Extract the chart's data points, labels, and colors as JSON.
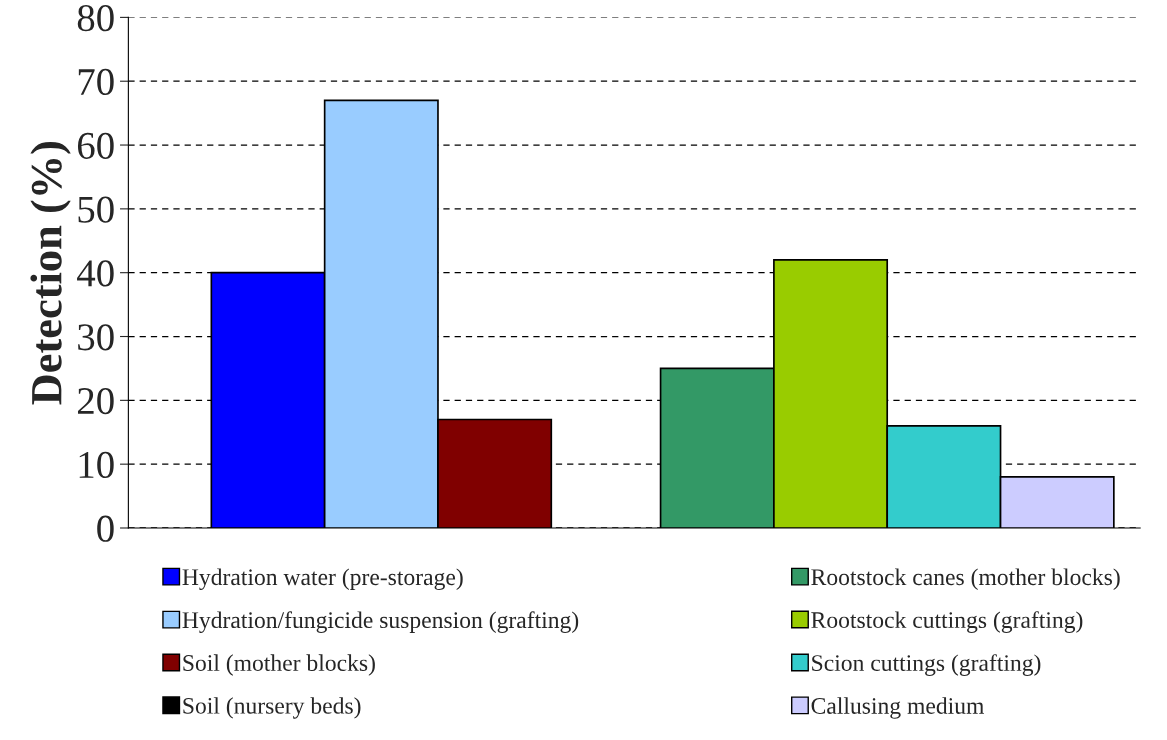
{
  "chart_data": {
    "type": "bar",
    "ylabel": "Detection (%)",
    "categories": [
      null,
      null
    ],
    "series": [
      {
        "name": "Hydration water (pre-storage)",
        "color": "#0000ff",
        "values": [
          40,
          null
        ]
      },
      {
        "name": "Hydration/fungicide suspension (grafting)",
        "color": "#99ccff",
        "values": [
          67,
          null
        ]
      },
      {
        "name": "Soil (mother blocks)",
        "color": "#800000",
        "values": [
          17,
          null
        ]
      },
      {
        "name": "Soil (nursery beds)",
        "color": "#000000",
        "values": [
          null,
          null
        ]
      },
      {
        "name": "Rootstock canes (mother blocks)",
        "color": "#339966",
        "values": [
          null,
          25
        ]
      },
      {
        "name": "Rootstock cuttings (grafting)",
        "color": "#99cc00",
        "values": [
          null,
          42
        ]
      },
      {
        "name": "Scion cuttings (grafting)",
        "color": "#33cccc",
        "values": [
          null,
          16
        ]
      },
      {
        "name": "Callusing medium",
        "color": "#ccccff",
        "values": [
          null,
          8
        ]
      }
    ],
    "ylim": [
      0,
      80
    ],
    "yticks": [
      0,
      10,
      20,
      30,
      40,
      50,
      60,
      70,
      80
    ],
    "grid": "y",
    "legend": "bottom",
    "tick_labels": "y"
  }
}
